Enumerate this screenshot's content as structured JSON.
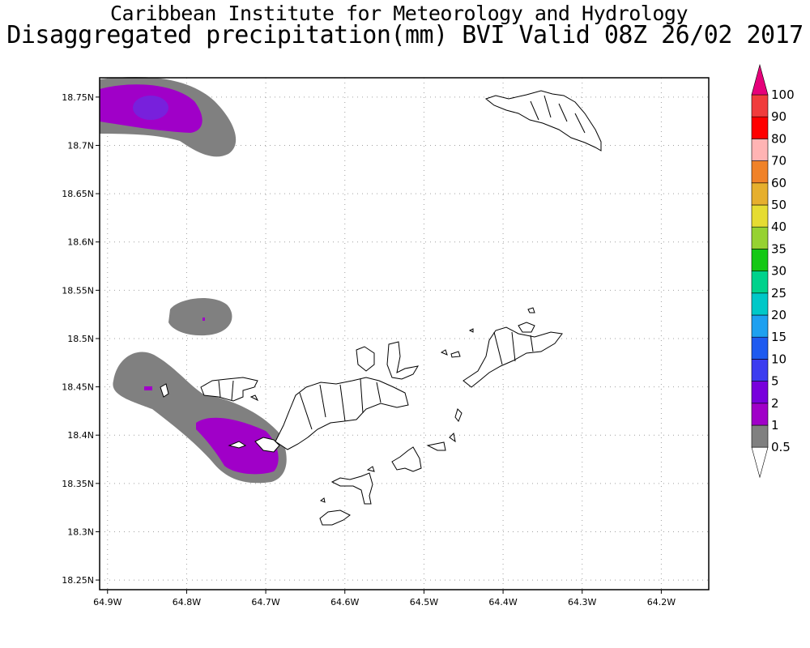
{
  "header": {
    "title": "Caribbean Institute for Meteorology and Hydrology",
    "subtitle": "Disaggregated precipitation(mm) BVI Valid 08Z 26/02 2017"
  },
  "map": {
    "lon_range": [
      -64.91,
      -64.14
    ],
    "lat_range": [
      18.24,
      18.77
    ],
    "lon_ticks": [
      "64.9W",
      "64.8W",
      "64.7W",
      "64.6W",
      "64.5W",
      "64.4W",
      "64.3W",
      "64.2W"
    ],
    "lat_ticks": [
      "18.75N",
      "18.7N",
      "18.65N",
      "18.6N",
      "18.55N",
      "18.5N",
      "18.45N",
      "18.4N",
      "18.35N",
      "18.3N",
      "18.25N"
    ],
    "grid": true,
    "precip_colors": {
      "gray": "#808080",
      "purple": "#9600c8",
      "violet": "#7820dc"
    }
  },
  "colorbar": {
    "levels": [
      "0.5",
      "1",
      "2",
      "5",
      "10",
      "15",
      "20",
      "25",
      "30",
      "35",
      "40",
      "50",
      "60",
      "70",
      "80",
      "90",
      "100"
    ],
    "colors": [
      "#ffffff",
      "#808080",
      "#a000c8",
      "#7800dc",
      "#3c3cf0",
      "#1e5af0",
      "#1ea0f0",
      "#00c8c8",
      "#00d28c",
      "#14c814",
      "#96d232",
      "#e6dc32",
      "#e6af2d",
      "#f08228",
      "#ffb4b4",
      "#ff0000",
      "#f03c3c",
      "#e6007a"
    ]
  }
}
